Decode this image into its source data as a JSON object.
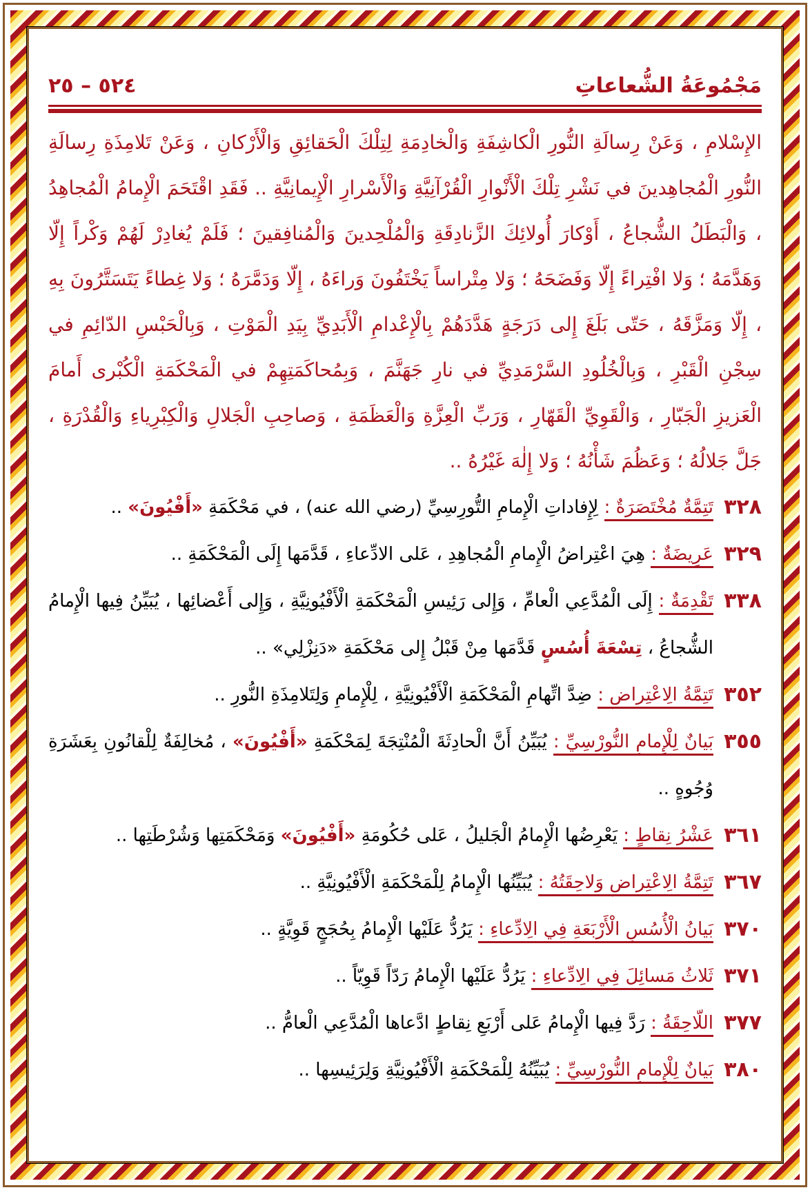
{
  "header": {
    "page_number": "٥٢٤ – ٢٥",
    "book_title": "مَجْمُوعَةُ الشُّعاعاتِ"
  },
  "paragraph": "الإِسْلامِ ، وَعَنْ رِسالَةِ النُّورِ الْكاشِفَةِ وَالْخادِمَةِ لِتِلْكَ الْحَقائِقِ وَالْأَرْكانِ ، وَعَنْ تَلامِذَةِ رِسالَةِ النُّورِ الْمُجاهِدينَ في نَشْرِ تِلْكَ الْأَنْوارِ الْقُرْآنِيَّةِ وَالْأَسْرارِ الْإِيمانِيَّةِ .. فَقَدِ اقْتَحَمَ الْإِمامُ الْمُجاهِدُ ، وَالْبَطَلُ الشُّجاعُ ، أَوْكارَ أُولائِكَ الزَّنادِقَةِ وَالْمُلْحِدينَ وَالْمُنافِقينَ ؛ فَلَمْ يُغادِرْ لَهُمْ وَكْراً إِلّا وَهَدَّمَهُ ؛ وَلا افْتِراءً إِلّا وَفَضَحَهُ ؛ وَلا مِتْراساً يَخْتَفُونَ وَراءَهُ ، إِلّا وَدَمَّرَهُ ؛ وَلا غِطاءً يَتَسَتَّرُونَ بِهِ ، إِلّا وَمَزَّقَهُ ، حَتّى بَلَغَ إِلى دَرَجَةٍ هَدَّدَهُمْ بِالْإِعْدامِ الْأَبَدِيِّ بِيَدِ الْمَوْتِ ، وَبِالْحَبْسِ الدّائِمِ في سِجْنِ الْقَبْرِ ، وَبِالْخُلُودِ السَّرْمَدِيِّ في نارِ جَهَنَّمَ ، وَبِمُحاكَمَتِهِمْ في الْمَحْكَمَةِ الْكُبْرى أَمامَ الْعَزيزِ الْجَبّارِ ، وَالْقَوِيِّ الْقَهّارِ ، وَرَبِّ الْعِزَّةِ وَالْعَظَمَةِ ، وَصاحِبِ الْجَلالِ وَالْكِبْرِياءِ وَالْقُدْرَةِ ، جَلَّ جَلالُهُ ؛ وَعَظُمَ شَأْنُهُ ؛ وَلا إِلٰهَ غَيْرُهُ ..",
  "entries": [
    {
      "number": "٣٢٨",
      "heading": "تَتِمَّةٌ مُخْتَصَرَةٌ :",
      "text": " لِإِفاداتِ الْإِمامِ التُّورِسِيِّ (رضي الله عنه) ، في مَحْكَمَةِ ",
      "highlight": "«أَفْيُونَ»",
      "tail": " .."
    },
    {
      "number": "٣٢٩",
      "heading": "عَرِيضَةٌ :",
      "text": " هِيَ اعْتِراضُ الْإِمامِ الْمُجاهِدِ ، عَلى الادِّعاءِ ، قَدَّمَها إِلَى الْمَحْكَمَةِ ..",
      "highlight": "",
      "tail": ""
    },
    {
      "number": "٣٣٨",
      "heading": "تَقْدِمَةٌ :",
      "text": " إِلَى الْمُدَّعِي الْعامِّ ، وَإِلى رَئِيسِ الْمَحْكَمَةِ الْأَفْيُونِيَّةِ ، وَإِلى أَعْضائِها ، يُبَيِّنُ فِيها الْإِمامُ الشُّجاعُ ، ",
      "highlight": "تِسْعَةَ أُسُسٍ",
      "tail": " قَدَّمَها مِنْ قَبْلُ إِلى مَحْكَمَةِ «دَنِزْلِي» .."
    },
    {
      "number": "٣٥٢",
      "heading": "تَتِمَّةُ الِاعْتِراضِ :",
      "text": " ضِدَّ اتِّهامِ الْمَحْكَمَةِ الْأَفْيُونِيَّةِ ، لِلْإِمامِ وَلِتَلامِذَةِ النُّورِ ..",
      "highlight": "",
      "tail": ""
    },
    {
      "number": "٣٥٥",
      "heading": "بَيانٌ لِلْإِمامِ النُّورْسِيِّ :",
      "text": " يُبَيِّنُ أَنَّ الْحادِثَةَ الْمُنْتِجَةَ لِمَحْكَمَةِ ",
      "highlight": "«أَفْيُونَ»",
      "tail": " ، مُخالِفَةٌ لِلْقانُونِ بِعَشَرَةِ وُجُوهٍ .."
    },
    {
      "number": "٣٦١",
      "heading": "عَشْرُ نِقاطٍ :",
      "text": " يَعْرِضُها الْإِمامُ الْجَليلُ ، عَلى حُكُومَةِ ",
      "highlight": "«أَفْيُونَ»",
      "tail": " وَمَحْكَمَتِها وَشُرْطَتِها .."
    },
    {
      "number": "٣٦٧",
      "heading": "تَتِمَّةُ الِاعْتِراضِ وَلاحِقَتُهُ :",
      "text": " يُبَيِّنُها الْإِمامُ لِلْمَحْكَمَةِ الْأَفْيُونِيَّةِ ..",
      "highlight": "",
      "tail": ""
    },
    {
      "number": "٣٧٠",
      "heading": "بَيانُ الْأُسُسِ الْأَرْبَعَةِ فِي الِادِّعاءِ :",
      "text": " يَرُدُّ عَلَيْها الْإِمامُ بِحُجَجٍ قَوِيَّةٍ ..",
      "highlight": "",
      "tail": ""
    },
    {
      "number": "٣٧١",
      "heading": "ثَلاثُ مَسائِلَ فِي الِادِّعاءِ :",
      "text": " يَرُدُّ عَلَيْها الْإِمامُ رَدّاً قَوِيّاً ..",
      "highlight": "",
      "tail": ""
    },
    {
      "number": "٣٧٧",
      "heading": "اللّاحِقَةُ :",
      "text": " رَدَّ فِيها الْإِمامُ عَلى أَرْبَعِ نِقاطٍ ادَّعاها الْمُدَّعِي الْعامُّ ..",
      "highlight": "",
      "tail": ""
    },
    {
      "number": "٣٨٠",
      "heading": "بَيانٌ لِلْإِمامِ النُّورْسِيِّ :",
      "text": " يُبَيِّنُهُ لِلْمَحْكَمَةِ الْأَفْيُونِيَّةِ وَلِرَئِيسِها ..",
      "highlight": "",
      "tail": ""
    }
  ],
  "colors": {
    "accent": "#a8141e",
    "frame": "#8a5a2b",
    "braid_gold": "#f6b61e"
  }
}
